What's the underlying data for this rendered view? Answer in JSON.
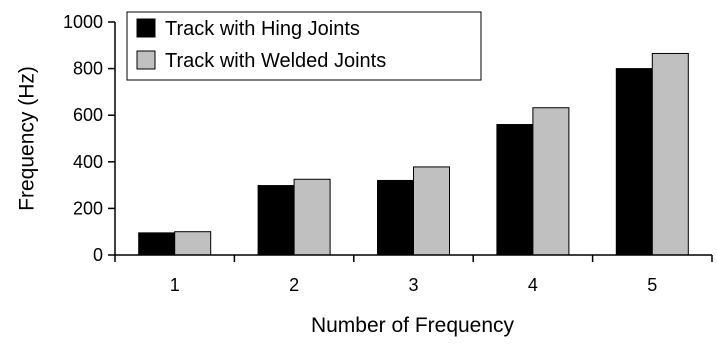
{
  "chart_data": {
    "type": "bar",
    "title": "",
    "xlabel": "Number of Frequency",
    "ylabel": "Frequency (Hz)",
    "categories": [
      "1",
      "2",
      "3",
      "4",
      "5"
    ],
    "series": [
      {
        "name": "Track with Hing Joints",
        "color": "#000000",
        "values": [
          95,
          298,
          320,
          560,
          800
        ]
      },
      {
        "name": "Track with Welded Joints",
        "color": "#c0c0c0",
        "values": [
          100,
          325,
          378,
          632,
          865
        ]
      }
    ],
    "ylim": [
      0,
      1000
    ],
    "yticks": [
      "0",
      "200",
      "400",
      "600",
      "800",
      "1000"
    ],
    "grid": false,
    "legend_position": "top-left"
  }
}
